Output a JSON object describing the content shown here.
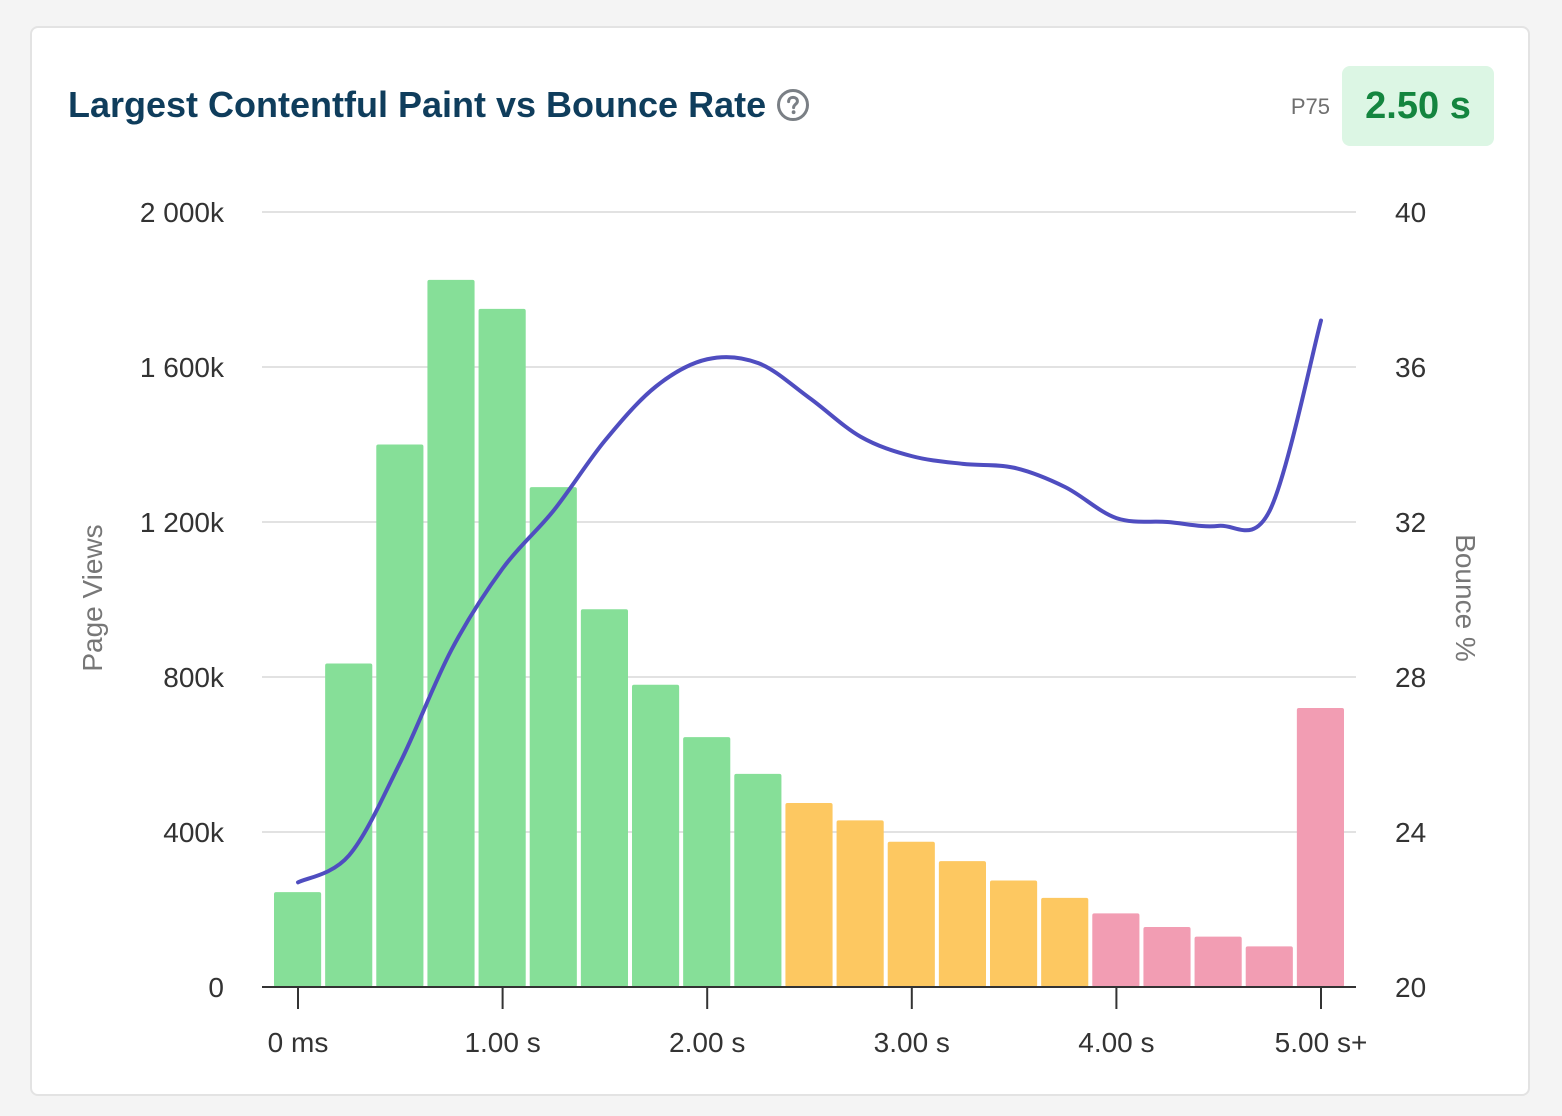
{
  "card": {
    "title": "Largest Contentful Paint vs Bounce Rate",
    "help_icon": "question-circle-icon",
    "p75_label": "P75",
    "p75_value": "2.50 s"
  },
  "colors": {
    "good": "#86df98",
    "needs_improvement": "#fdc861",
    "poor": "#f29db3",
    "line": "#4f4dc0",
    "title": "#0f3d5c",
    "p75_value": "#14853f",
    "p75_bg": "#dcf6e4"
  },
  "chart_data": {
    "type": "bar",
    "xlabel": "",
    "x_tick_labels": [
      "0 ms",
      "1.00 s",
      "2.00 s",
      "3.00 s",
      "4.00 s",
      "5.00 s+"
    ],
    "y_left_label": "Page Views",
    "y_left_ticks": [
      "0",
      "400k",
      "800k",
      "1 200k",
      "1 600k",
      "2 000k"
    ],
    "y_left_lim": [
      0,
      2000000
    ],
    "y_right_label": "Bounce %",
    "y_right_ticks": [
      "20",
      "24",
      "28",
      "32",
      "36",
      "40"
    ],
    "y_right_lim": [
      20,
      40
    ],
    "grid": true,
    "bins_ms": [
      0,
      250,
      500,
      750,
      1000,
      1250,
      1500,
      1750,
      2000,
      2250,
      2500,
      2750,
      3000,
      3250,
      3500,
      3750,
      4000,
      4250,
      4500,
      4750,
      5000
    ],
    "series": [
      {
        "name": "Page Views",
        "values": [
          245000,
          835000,
          1400000,
          1825000,
          1750000,
          1290000,
          975000,
          780000,
          645000,
          550000,
          475000,
          430000,
          375000,
          325000,
          275000,
          230000,
          190000,
          155000,
          130000,
          105000,
          720000
        ],
        "categories": [
          "good",
          "good",
          "good",
          "good",
          "good",
          "good",
          "good",
          "good",
          "good",
          "good",
          "needs_improvement",
          "needs_improvement",
          "needs_improvement",
          "needs_improvement",
          "needs_improvement",
          "needs_improvement",
          "poor",
          "poor",
          "poor",
          "poor",
          "poor"
        ]
      },
      {
        "name": "Bounce %",
        "type": "line",
        "x_ms": [
          0,
          250,
          500,
          750,
          1000,
          1250,
          1500,
          1750,
          2000,
          2250,
          2500,
          2750,
          3000,
          3250,
          3500,
          3750,
          4000,
          4250,
          4500,
          4750,
          5000
        ],
        "values": [
          22.7,
          23.4,
          25.8,
          28.7,
          30.8,
          32.3,
          34.1,
          35.5,
          36.2,
          36.1,
          35.2,
          34.2,
          33.7,
          33.5,
          33.4,
          32.9,
          32.1,
          32.0,
          31.9,
          32.3,
          37.2
        ]
      }
    ]
  }
}
